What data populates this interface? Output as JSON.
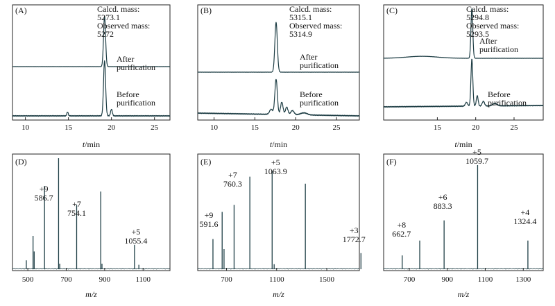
{
  "chart_data": [
    {
      "id": "A",
      "type": "line",
      "panel_label": "(A)",
      "xlabel": "t/min",
      "xlim": [
        8.5,
        26.8
      ],
      "xticks": [
        10,
        15,
        20,
        25
      ],
      "annotations": [
        "Calcd. mass:",
        "5273.1",
        "Observed mass:",
        "5272"
      ],
      "series": [
        {
          "name": "After purification",
          "label_lines": [
            "After",
            "purification"
          ],
          "peaks": [
            {
              "t": 19.2,
              "h": 1.0,
              "w": 0.12
            }
          ]
        },
        {
          "name": "Before purification",
          "label_lines": [
            "Before",
            "purification"
          ],
          "peaks": [
            {
              "t": 19.2,
              "h": 1.0,
              "w": 0.12
            },
            {
              "t": 20.0,
              "h": 0.12,
              "w": 0.1
            },
            {
              "t": 14.9,
              "h": 0.07,
              "w": 0.08
            }
          ]
        }
      ]
    },
    {
      "id": "B",
      "type": "line",
      "panel_label": "(B)",
      "xlabel": "t/min",
      "xlim": [
        8.0,
        27.8
      ],
      "xticks": [
        10,
        15,
        20,
        25
      ],
      "annotations": [
        "Calcd. mass:",
        "5315.1",
        "Observed mass:",
        "5314.9"
      ],
      "series": [
        {
          "name": "After purification",
          "label_lines": [
            "After",
            "purification"
          ],
          "peaks": [
            {
              "t": 17.6,
              "h": 1.0,
              "w": 0.15
            }
          ]
        },
        {
          "name": "Before purification",
          "label_lines": [
            "Before",
            "purification"
          ],
          "peaks": [
            {
              "t": 17.6,
              "h": 0.85,
              "w": 0.15
            },
            {
              "t": 18.3,
              "h": 0.3,
              "w": 0.15
            },
            {
              "t": 18.9,
              "h": 0.18,
              "w": 0.15
            },
            {
              "t": 17.0,
              "h": 0.12,
              "w": 0.2
            },
            {
              "t": 19.6,
              "h": 0.1,
              "w": 0.2
            },
            {
              "t": 21.0,
              "h": 0.05,
              "w": 0.4
            }
          ]
        }
      ]
    },
    {
      "id": "C",
      "type": "line",
      "panel_label": "(C)",
      "xlabel": "t/min",
      "xlim": [
        8.0,
        28.8
      ],
      "xticks": [
        15,
        20,
        25
      ],
      "annotations": [
        "Calcd. mass:",
        "5294.8",
        "Observed mass:",
        "5293.5"
      ],
      "series": [
        {
          "name": "After purification",
          "label_lines": [
            "After",
            "purification"
          ],
          "peaks": [
            {
              "t": 19.5,
              "h": 1.0,
              "w": 0.12
            },
            {
              "t": 13.0,
              "h": 0.04,
              "w": 2.0
            }
          ]
        },
        {
          "name": "Before purification",
          "label_lines": [
            "Before",
            "purification"
          ],
          "peaks": [
            {
              "t": 19.5,
              "h": 1.0,
              "w": 0.12
            },
            {
              "t": 20.2,
              "h": 0.22,
              "w": 0.12
            },
            {
              "t": 21.0,
              "h": 0.1,
              "w": 0.15
            },
            {
              "t": 18.8,
              "h": 0.08,
              "w": 0.15
            },
            {
              "t": 22.5,
              "h": 0.05,
              "w": 0.3
            }
          ]
        }
      ]
    },
    {
      "id": "D",
      "type": "bar",
      "panel_label": "(D)",
      "xlabel": "m/z",
      "xlim": [
        420,
        1240
      ],
      "xticks": [
        500,
        700,
        900,
        1100
      ],
      "ylim": [
        0,
        1
      ],
      "peaks": [
        {
          "mz": 492,
          "i": 0.08
        },
        {
          "mz": 527,
          "i": 0.3
        },
        {
          "mz": 533,
          "i": 0.16
        },
        {
          "mz": 586.7,
          "i": 0.75,
          "label": [
            "+9",
            "586.7"
          ]
        },
        {
          "mz": 660,
          "i": 1.0
        },
        {
          "mz": 666,
          "i": 0.05
        },
        {
          "mz": 754.1,
          "i": 0.58,
          "label": [
            "+7",
            "754.1"
          ]
        },
        {
          "mz": 879.5,
          "i": 0.7
        },
        {
          "mz": 886,
          "i": 0.05
        },
        {
          "mz": 1055.4,
          "i": 0.22,
          "label": [
            "+5",
            "1055.4"
          ]
        },
        {
          "mz": 1078,
          "i": 0.04
        }
      ]
    },
    {
      "id": "E",
      "type": "bar",
      "panel_label": "(E)",
      "xlabel": "m/z",
      "xlim": [
        470,
        1760
      ],
      "xticks": [
        700,
        1100,
        1500
      ],
      "ylim": [
        0,
        1
      ],
      "peaks": [
        {
          "mz": 591.6,
          "i": 0.3,
          "label": [
            "+9",
            "591.6"
          ]
        },
        {
          "mz": 665,
          "i": 0.57
        },
        {
          "mz": 680,
          "i": 0.2
        },
        {
          "mz": 760.3,
          "i": 0.64,
          "label": [
            "+7",
            "760.3"
          ]
        },
        {
          "mz": 886,
          "i": 0.92
        },
        {
          "mz": 1063.9,
          "i": 0.98,
          "label": [
            "+5",
            "1063.9"
          ]
        },
        {
          "mz": 1080,
          "i": 0.05
        },
        {
          "mz": 1329,
          "i": 0.85
        },
        {
          "mz": 1772.7,
          "i": 0.16,
          "label": [
            "+3",
            "1772.7"
          ]
        }
      ]
    },
    {
      "id": "F",
      "type": "bar",
      "panel_label": "(F)",
      "xlabel": "m/z",
      "xlim": [
        565,
        1405
      ],
      "xticks": [
        700,
        900,
        1100,
        1300
      ],
      "ylim": [
        0,
        1
      ],
      "peaks": [
        {
          "mz": 662.7,
          "i": 0.13,
          "label": [
            "+8",
            "662.7"
          ]
        },
        {
          "mz": 755,
          "i": 0.27
        },
        {
          "mz": 883.3,
          "i": 0.46,
          "label": [
            "+6",
            "883.3"
          ]
        },
        {
          "mz": 1059.7,
          "i": 0.98,
          "label": [
            "+5",
            "1059.7"
          ]
        },
        {
          "mz": 1324.4,
          "i": 0.27,
          "label": [
            "+4",
            "1324.4"
          ]
        }
      ]
    }
  ]
}
